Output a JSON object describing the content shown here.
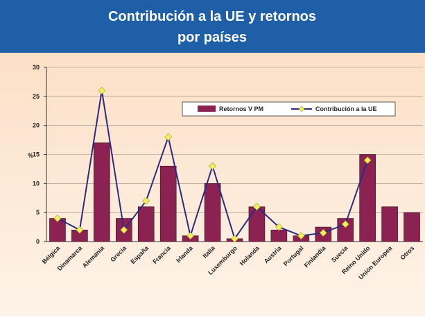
{
  "chart_data": {
    "type": "bar_line",
    "title_lines": [
      "Contribución a la UE y retornos",
      "por países"
    ],
    "y_label": "%",
    "categories": [
      "Bélgica",
      "Dinamarca",
      "Alemania",
      "Grecia",
      "España",
      "Francia",
      "Irlanda",
      "Italia",
      "Luxemburgo",
      "Holanda",
      "Austria",
      "Portugal",
      "Finlandia",
      "Suecia",
      "Reino Unido",
      "Unión Europea",
      "Otros"
    ],
    "series": [
      {
        "name": "Retornos V PM",
        "type": "bar",
        "color": "#8b2252",
        "values": [
          4,
          2,
          17,
          4,
          6,
          13,
          1,
          10,
          0.5,
          6,
          2,
          1,
          2.5,
          4,
          15,
          6,
          5
        ]
      },
      {
        "name": "Contribución a la UE",
        "type": "line",
        "color": "#2b2b80",
        "marker_color": "#f2f060",
        "values": [
          4,
          2,
          26,
          2,
          7,
          18,
          1,
          13,
          0.5,
          6,
          2.5,
          1,
          1.5,
          3,
          14,
          null,
          null
        ]
      }
    ],
    "ylim": [
      0,
      30
    ],
    "yticks": [
      0,
      5,
      10,
      15,
      20,
      25,
      30
    ],
    "grid": true
  }
}
